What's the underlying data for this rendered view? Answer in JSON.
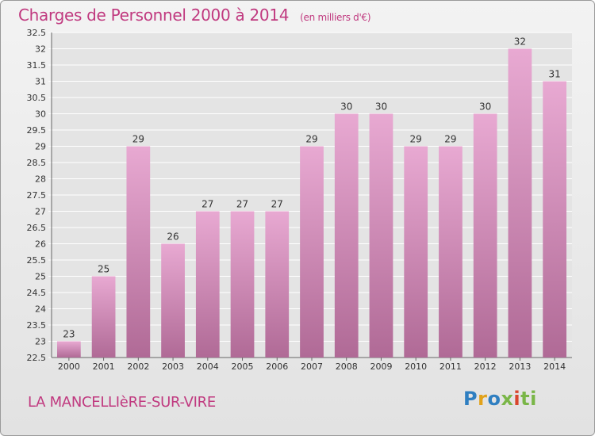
{
  "header": {
    "title": "Charges de Personnel 2000 à 2014",
    "subtitle": "(en milliers d'€)"
  },
  "footer": {
    "place": "LA MANCELLIèRE-SUR-VIRE",
    "logo": [
      "P",
      "r",
      "o",
      "x",
      "i",
      "ti"
    ]
  },
  "colors": {
    "accent": "#c0397f",
    "bar_top": "#e8a9d2",
    "bar_bottom": "#b06a96",
    "grid": "#ffffff"
  },
  "chart_data": {
    "type": "bar",
    "categories": [
      "2000",
      "2001",
      "2002",
      "2003",
      "2004",
      "2005",
      "2006",
      "2007",
      "2008",
      "2009",
      "2010",
      "2011",
      "2012",
      "2013",
      "2014"
    ],
    "values": [
      23,
      25,
      29,
      26,
      27,
      27,
      27,
      29,
      30,
      30,
      29,
      29,
      30,
      32,
      31
    ],
    "ylim": [
      22.5,
      32.5
    ],
    "yticks": [
      "22.5",
      "23",
      "23.5",
      "24",
      "24.5",
      "25",
      "25.5",
      "26",
      "26.5",
      "27",
      "27.5",
      "28",
      "28.5",
      "29",
      "29.5",
      "30",
      "30.5",
      "31",
      "31.5",
      "32",
      "32.5"
    ],
    "grid": true
  }
}
